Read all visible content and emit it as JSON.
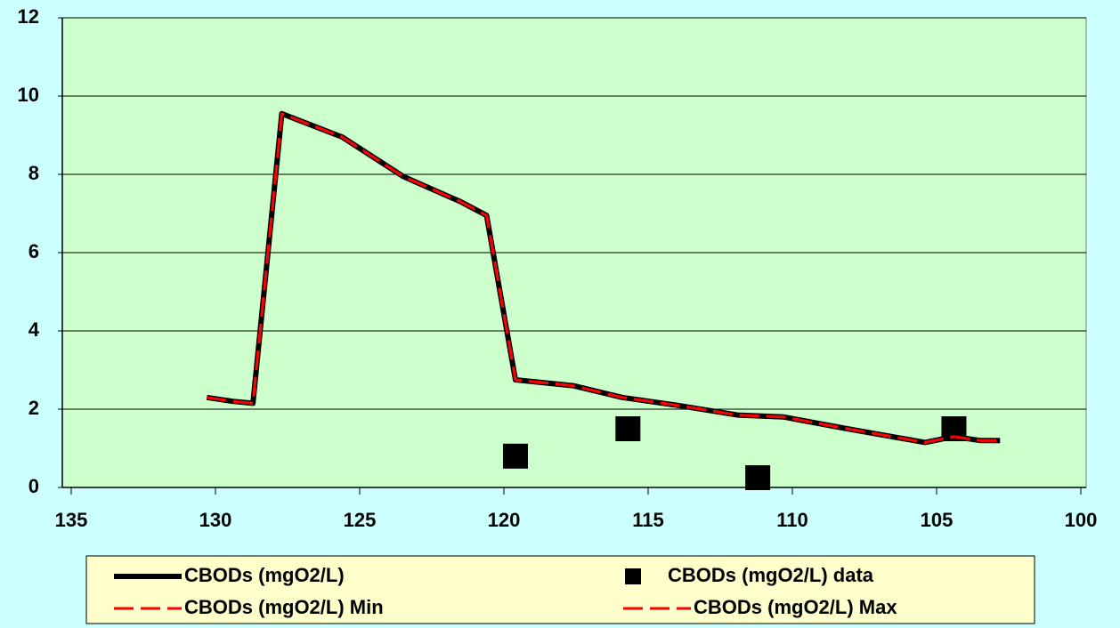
{
  "chart_data": {
    "type": "line",
    "xlim": [
      135,
      100
    ],
    "xticks": [
      135,
      130,
      125,
      120,
      115,
      110,
      105,
      100
    ],
    "ylim": [
      0,
      12
    ],
    "yticks": [
      0,
      2,
      4,
      6,
      8,
      10,
      12
    ],
    "grid": true,
    "series": [
      {
        "name": "CBODs (mgO2/L)",
        "color": "#000000",
        "style": "solid",
        "x": [
          130.3,
          129.4,
          128.7,
          127.7,
          125.6,
          123.5,
          121.5,
          120.6,
          119.6,
          117.6,
          115.9,
          114.0,
          111.9,
          110.3,
          108.1,
          105.4,
          104.4,
          103.5,
          102.8
        ],
        "values": [
          2.3,
          2.2,
          2.15,
          9.55,
          8.95,
          7.95,
          7.3,
          6.95,
          2.75,
          2.6,
          2.3,
          2.1,
          1.85,
          1.8,
          1.5,
          1.15,
          1.3,
          1.2,
          1.2
        ]
      },
      {
        "name": "CBODs (mgO2/L) data",
        "color": "#000000",
        "style": "square",
        "x": [
          119.6,
          115.7,
          111.2,
          104.4
        ],
        "values": [
          0.8,
          1.5,
          0.25,
          1.5
        ]
      },
      {
        "name": "CBODs (mgO2/L) Min",
        "color": "#ff0000",
        "style": "dashed",
        "x": [
          130.3,
          129.4,
          128.7,
          127.7,
          125.6,
          123.5,
          121.5,
          120.6,
          119.6,
          117.6,
          115.9,
          114.0,
          111.9,
          110.3,
          108.1,
          105.4,
          104.4,
          103.5,
          102.8
        ],
        "values": [
          2.3,
          2.2,
          2.15,
          9.55,
          8.95,
          7.95,
          7.3,
          6.95,
          2.75,
          2.6,
          2.3,
          2.1,
          1.85,
          1.8,
          1.5,
          1.15,
          1.3,
          1.2,
          1.2
        ]
      },
      {
        "name": "CBODs (mgO2/L) Max",
        "color": "#ff0000",
        "style": "dashed",
        "x": [
          130.3,
          129.4,
          128.7,
          127.7,
          125.6,
          123.5,
          121.5,
          120.6,
          119.6,
          117.6,
          115.9,
          114.0,
          111.9,
          110.3,
          108.1,
          105.4,
          104.4,
          103.5,
          102.8
        ],
        "values": [
          2.3,
          2.2,
          2.15,
          9.55,
          8.95,
          7.95,
          7.3,
          6.95,
          2.75,
          2.6,
          2.3,
          2.1,
          1.85,
          1.8,
          1.5,
          1.15,
          1.3,
          1.2,
          1.2
        ]
      }
    ]
  }
}
